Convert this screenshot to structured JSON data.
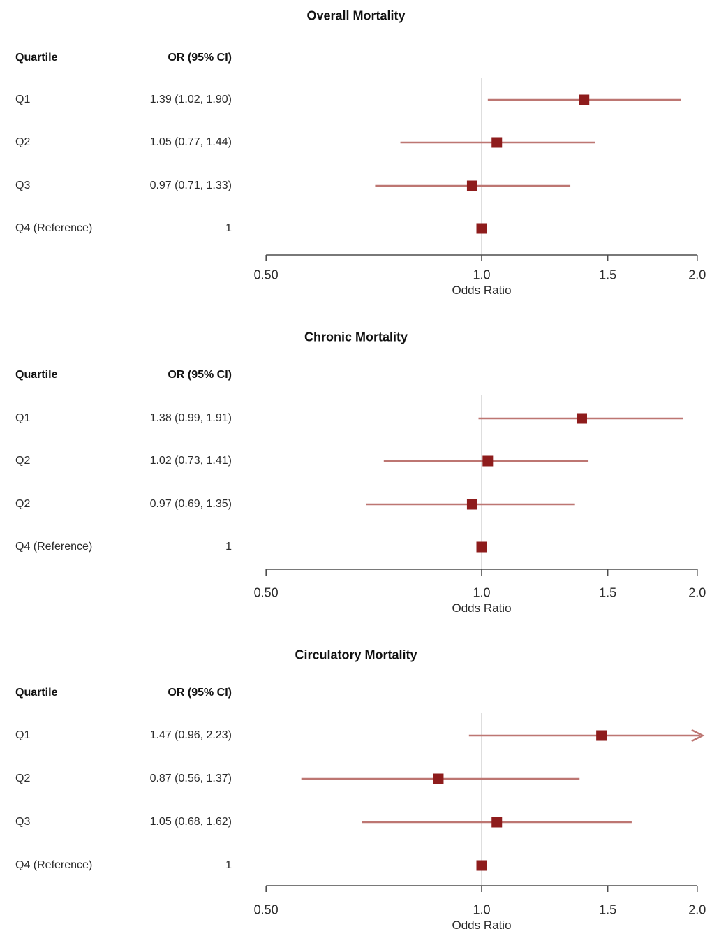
{
  "columns": {
    "quartile": "Quartile",
    "or_ci": "OR (95% CI)"
  },
  "axis": {
    "label": "Odds Ratio",
    "scale": "log",
    "min": 0.5,
    "max": 2.0,
    "ticks": [
      0.5,
      1.0,
      1.5,
      2.0
    ],
    "tick_labels": [
      "0.50",
      "1.0",
      "1.5",
      "2.0"
    ],
    "reference_line": 1.0
  },
  "colors": {
    "marker": "#8e1c1c",
    "ci_line": "#bd7672",
    "reference_line": "#cfcfcf",
    "axis": "#4d4d4d",
    "text": "#2b2b2b"
  },
  "chart_data": [
    {
      "type": "forest",
      "title": "Overall Mortality",
      "xlabel": "Odds Ratio",
      "xlim": [
        0.5,
        2.0
      ],
      "rows": [
        {
          "label": "Q1",
          "or_text": "1.39 (1.02, 1.90)",
          "or": 1.39,
          "low": 1.02,
          "high": 1.9
        },
        {
          "label": "Q2",
          "or_text": "1.05 (0.77, 1.44)",
          "or": 1.05,
          "low": 0.77,
          "high": 1.44
        },
        {
          "label": "Q3",
          "or_text": "0.97 (0.71, 1.33)",
          "or": 0.97,
          "low": 0.71,
          "high": 1.33
        },
        {
          "label": "Q4 (Reference)",
          "or_text": "1",
          "or": 1.0,
          "low": null,
          "high": null
        }
      ]
    },
    {
      "type": "forest",
      "title": "Chronic Mortality",
      "xlabel": "Odds Ratio",
      "xlim": [
        0.5,
        2.0
      ],
      "rows": [
        {
          "label": "Q1",
          "or_text": "1.38 (0.99, 1.91)",
          "or": 1.38,
          "low": 0.99,
          "high": 1.91
        },
        {
          "label": "Q2",
          "or_text": "1.02 (0.73, 1.41)",
          "or": 1.02,
          "low": 0.73,
          "high": 1.41
        },
        {
          "label": "Q2",
          "or_text": "0.97 (0.69, 1.35)",
          "or": 0.97,
          "low": 0.69,
          "high": 1.35
        },
        {
          "label": "Q4 (Reference)",
          "or_text": "1",
          "or": 1.0,
          "low": null,
          "high": null
        }
      ]
    },
    {
      "type": "forest",
      "title": "Circulatory Mortality",
      "xlabel": "Odds Ratio",
      "xlim": [
        0.5,
        2.0
      ],
      "rows": [
        {
          "label": "Q1",
          "or_text": "1.47 (0.96, 2.23)",
          "or": 1.47,
          "low": 0.96,
          "high": 2.23
        },
        {
          "label": "Q2",
          "or_text": "0.87 (0.56, 1.37)",
          "or": 0.87,
          "low": 0.56,
          "high": 1.37
        },
        {
          "label": "Q3",
          "or_text": "1.05 (0.68, 1.62)",
          "or": 1.05,
          "low": 0.68,
          "high": 1.62
        },
        {
          "label": "Q4 (Reference)",
          "or_text": "1",
          "or": 1.0,
          "low": null,
          "high": null
        }
      ]
    }
  ]
}
